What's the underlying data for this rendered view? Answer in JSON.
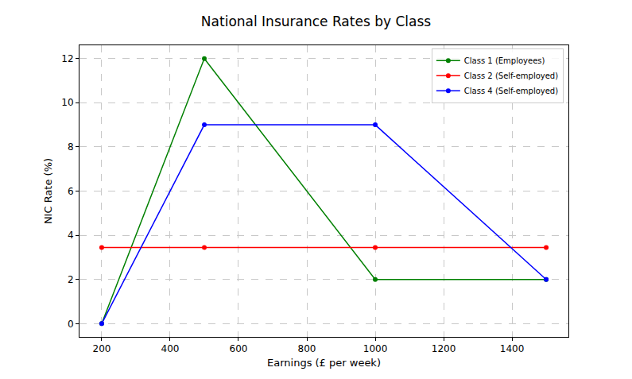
{
  "chart_data": {
    "type": "line",
    "title": "National Insurance Rates by Class",
    "x_label": "Earnings (£ per week)",
    "y_label": "NIC Rate (%)",
    "x": [
      200,
      500,
      1000,
      1500
    ],
    "series": [
      {
        "name": "Class 1 (Employees)",
        "color": "#008000",
        "values": [
          0,
          12,
          2,
          2
        ]
      },
      {
        "name": "Class 2 (Self-employed)",
        "color": "#ff0000",
        "values": [
          3.45,
          3.45,
          3.45,
          3.45
        ]
      },
      {
        "name": "Class 4 (Self-employed)",
        "color": "#0000ff",
        "values": [
          0,
          9,
          9,
          2
        ]
      }
    ],
    "xlim": [
      135,
      1565
    ],
    "xticks": [
      200,
      400,
      600,
      800,
      1000,
      1200,
      1400
    ],
    "ylim": [
      -0.6,
      12.6
    ],
    "yticks": [
      0,
      2,
      4,
      6,
      8,
      10,
      12
    ],
    "grid": true,
    "legend": "upper right",
    "marker": "circle",
    "line_style": "solid"
  }
}
